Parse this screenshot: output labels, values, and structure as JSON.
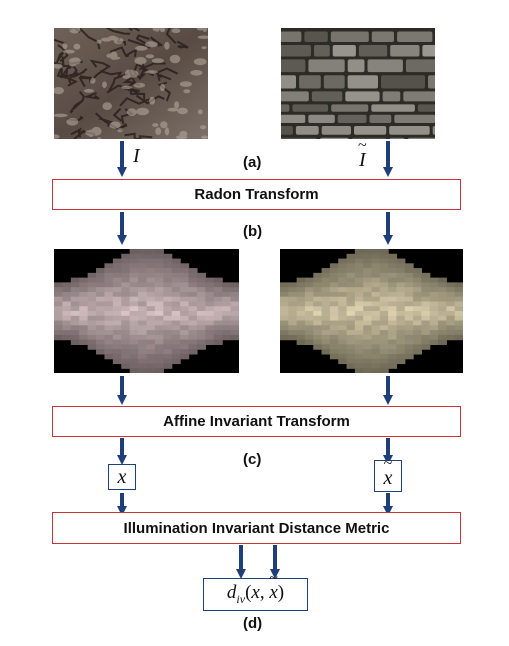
{
  "panels": {
    "a_label": "(a)",
    "b_label": "(b)",
    "c_label": "(c)",
    "d_label": "(d)"
  },
  "symbols": {
    "input_left": "I",
    "input_right": "I",
    "feature_left": "x",
    "feature_right": "x",
    "tilde": "~",
    "result_main": "d",
    "result_sub": "iv",
    "result_args_open": "(x, ",
    "result_args_x": "x",
    "result_args_close": ")"
  },
  "boxes": {
    "radon": "Radon Transform",
    "affine": "Affine Invariant Transform",
    "metric": "Illumination Invariant Distance Metric"
  },
  "colors": {
    "arrow": "#1f3f7a",
    "box_border": "#c8343a",
    "vector_border": "#1f3f7a"
  }
}
